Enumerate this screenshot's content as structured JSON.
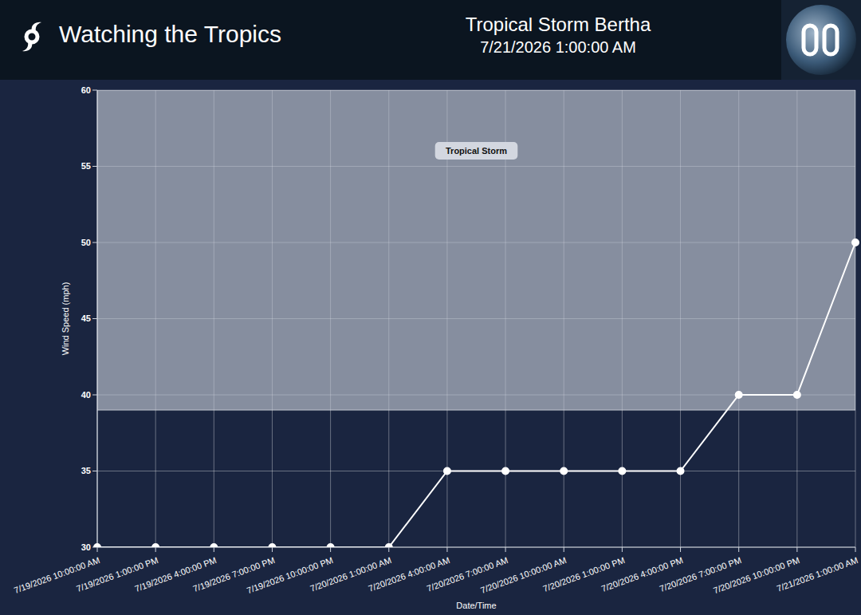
{
  "chart_data": {
    "type": "line",
    "header": "Watching the Tropics",
    "title": "Tropical Storm Bertha",
    "subtitle": "7/21/2026 1:00:00 AM",
    "x_label": "Date/Time",
    "y_label": "Wind Speed (mph)",
    "categories": [
      "7/19/2026 10:00:00 AM",
      "7/19/2026 1:00:00 PM",
      "7/19/2026 4:00:00 PM",
      "7/19/2026 7:00:00 PM",
      "7/19/2026 10:00:00 PM",
      "7/20/2026 1:00:00 AM",
      "7/20/2026 4:00:00 AM",
      "7/20/2026 7:00:00 AM",
      "7/20/2026 10:00:00 AM",
      "7/20/2026 1:00:00 PM",
      "7/20/2026 4:00:00 PM",
      "7/20/2026 7:00:00 PM",
      "7/20/2026 10:00:00 PM",
      "7/21/2026 1:00:00 AM"
    ],
    "values": [
      30,
      30,
      30,
      30,
      30,
      30,
      35,
      35,
      35,
      35,
      35,
      40,
      40,
      50
    ],
    "color": "#ffffff",
    "marker": "circle",
    "ylim": [
      30,
      60
    ],
    "yticks": [
      30,
      35,
      40,
      45,
      50,
      55,
      60
    ],
    "grid": true,
    "annotations": [
      {
        "text": "Tropical Storm",
        "y_from": 39,
        "y_to": 60
      }
    ]
  }
}
